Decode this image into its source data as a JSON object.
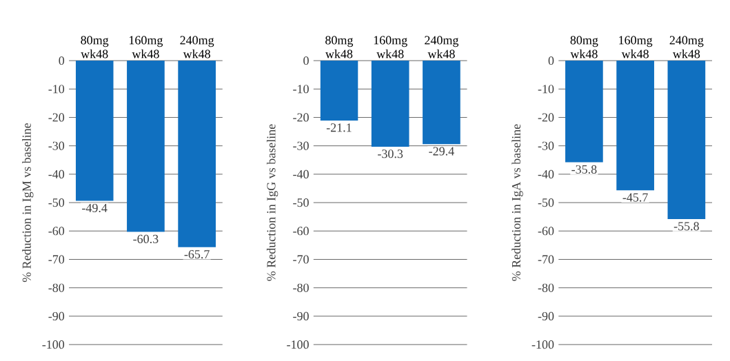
{
  "chart_data": [
    {
      "type": "bar",
      "categories": [
        "80mg wk48",
        "160mg wk48",
        "240mg wk48"
      ],
      "values": [
        -49.4,
        -60.3,
        -65.7
      ],
      "color": "#1070c0",
      "ylabel": "% Reduction in IgM vs baseline",
      "ylim": [
        -100,
        0
      ],
      "yticks": [
        0,
        -10,
        -20,
        -30,
        -40,
        -50,
        -60,
        -70,
        -80,
        -90,
        -100
      ],
      "grid": "y",
      "data_labels": true
    },
    {
      "type": "bar",
      "categories": [
        "80mg wk48",
        "160mg wk48",
        "240mg wk48"
      ],
      "values": [
        -21.1,
        -30.3,
        -29.4
      ],
      "color": "#1070c0",
      "ylabel": "% Reduction in IgG vs baseline",
      "ylim": [
        -100,
        0
      ],
      "yticks": [
        0,
        -10,
        -20,
        -30,
        -40,
        -50,
        -60,
        -70,
        -80,
        -90,
        -100
      ],
      "grid": "y",
      "data_labels": true
    },
    {
      "type": "bar",
      "categories": [
        "80mg wk48",
        "160mg wk48",
        "240mg wk48"
      ],
      "values": [
        -35.8,
        -45.7,
        -55.8
      ],
      "color": "#1070c0",
      "ylabel": "% Reduction in IgA vs baseline",
      "ylim": [
        -100,
        0
      ],
      "yticks": [
        0,
        -10,
        -20,
        -30,
        -40,
        -50,
        -60,
        -70,
        -80,
        -90,
        -100
      ],
      "grid": "y",
      "data_labels": true
    }
  ]
}
